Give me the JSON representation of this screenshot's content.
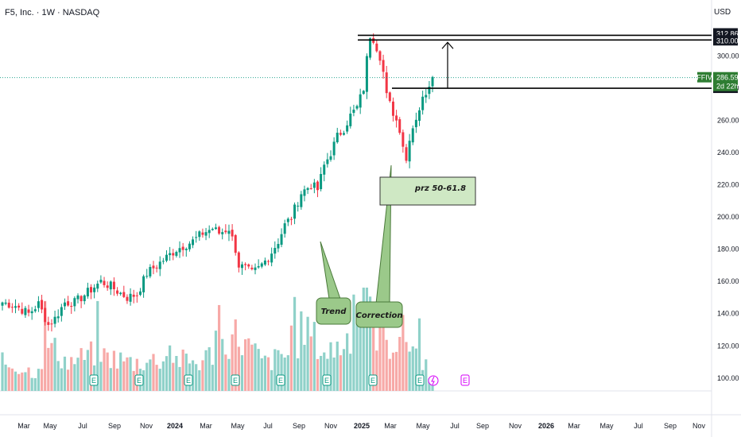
{
  "header": {
    "title": "F5, Inc. · 1W · NASDAQ",
    "currency": "USD"
  },
  "chart_data": {
    "type": "candlestick",
    "ylim": [
      92,
      320
    ],
    "y_ticks": [
      100,
      120,
      140,
      160,
      180,
      200,
      220,
      240,
      260,
      280,
      300
    ],
    "x_ticks": [
      "Mar",
      "May",
      "Jul",
      "Sep",
      "Nov",
      "2024",
      "Mar",
      "May",
      "Jul",
      "Sep",
      "Nov",
      "2025",
      "Mar",
      "May",
      "Jul",
      "Sep",
      "Nov",
      "2026",
      "Mar",
      "May",
      "Jul",
      "Sep",
      "Nov"
    ],
    "bold_ticks": [
      "2024",
      "2025",
      "2026"
    ],
    "close_waypoints": [
      [
        0,
        147
      ],
      [
        4,
        145
      ],
      [
        8,
        140
      ],
      [
        11,
        146
      ],
      [
        14,
        133
      ],
      [
        16,
        137
      ],
      [
        19,
        147
      ],
      [
        22,
        147
      ],
      [
        24,
        150
      ],
      [
        27,
        155
      ],
      [
        30,
        160
      ],
      [
        33,
        157
      ],
      [
        35,
        154
      ],
      [
        38,
        150
      ],
      [
        41,
        152
      ],
      [
        44,
        165
      ],
      [
        47,
        170
      ],
      [
        50,
        175
      ],
      [
        53,
        180
      ],
      [
        56,
        183
      ],
      [
        58,
        185
      ],
      [
        61,
        190
      ],
      [
        64,
        193
      ],
      [
        66,
        190
      ],
      [
        69,
        193
      ],
      [
        71,
        180
      ],
      [
        72,
        170
      ],
      [
        74,
        168
      ],
      [
        76,
        165
      ],
      [
        78,
        168
      ],
      [
        81,
        175
      ],
      [
        84,
        185
      ],
      [
        86,
        195
      ],
      [
        88,
        200
      ],
      [
        91,
        215
      ],
      [
        94,
        220
      ],
      [
        96,
        217
      ],
      [
        98,
        232
      ],
      [
        100,
        240
      ],
      [
        102,
        250
      ],
      [
        104,
        255
      ],
      [
        106,
        263
      ],
      [
        108,
        268
      ],
      [
        110,
        280
      ],
      [
        111,
        298
      ],
      [
        112,
        313
      ],
      [
        113,
        311
      ],
      [
        115,
        300
      ],
      [
        116,
        290
      ],
      [
        117,
        275
      ],
      [
        119,
        265
      ],
      [
        121,
        255
      ],
      [
        122,
        245
      ],
      [
        123,
        235
      ],
      [
        124,
        250
      ],
      [
        126,
        262
      ],
      [
        128,
        273
      ],
      [
        130,
        283
      ],
      [
        131,
        287
      ]
    ],
    "volume_waypoints": [
      [
        0,
        0.3
      ],
      [
        10,
        0.2
      ],
      [
        14,
        0.5
      ],
      [
        20,
        0.3
      ],
      [
        28,
        0.4
      ],
      [
        40,
        0.3
      ],
      [
        50,
        0.35
      ],
      [
        60,
        0.3
      ],
      [
        71,
        0.6
      ],
      [
        80,
        0.3
      ],
      [
        88,
        0.4
      ],
      [
        92,
        0.7
      ],
      [
        98,
        0.4
      ],
      [
        104,
        0.5
      ],
      [
        110,
        0.9
      ],
      [
        113,
        0.7
      ],
      [
        118,
        0.5
      ],
      [
        122,
        0.6
      ],
      [
        126,
        0.45
      ],
      [
        131,
        0.15
      ]
    ],
    "last_price": 286.59,
    "symbol": "FFIV",
    "countdown": "2d 22h",
    "levels": [
      {
        "value": 312.86,
        "label": "312.86"
      },
      {
        "value": 310.0,
        "label": "310.00"
      },
      {
        "value": 280.0,
        "label": "280.00"
      }
    ],
    "annotations": {
      "trend": "Trend",
      "correction": "Correction",
      "prz": "prz 50-61.8"
    },
    "event_marker": "E",
    "colors": {
      "up": "#089981",
      "down": "#f23645",
      "vol_up": "#8fd1c9",
      "vol_down": "#f7a9a7",
      "level": "#000000",
      "annotation_fill": "#9bc98a",
      "annotation_stroke": "#4a7a3a",
      "prz_fill": "#cfe8c4",
      "symbol_tag": "#2e7d32",
      "marker": "#d500f9"
    }
  }
}
